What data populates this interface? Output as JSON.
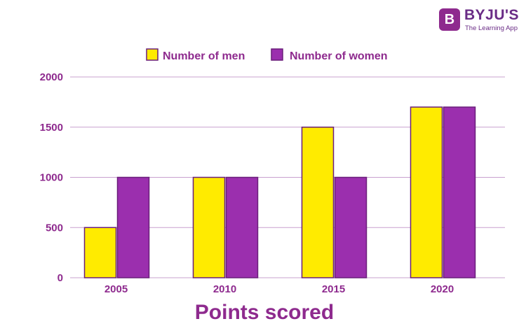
{
  "brand": {
    "badge_letter": "B",
    "name": "BYJU'S",
    "tagline": "The Learning App"
  },
  "chart_data": {
    "type": "bar",
    "categories": [
      "2005",
      "2010",
      "2015",
      "2020"
    ],
    "series": [
      {
        "name": "Number of men",
        "values": [
          500,
          1000,
          1500,
          1700
        ],
        "color": "#ffeb00"
      },
      {
        "name": "Number of women",
        "values": [
          1000,
          1000,
          1000,
          1700
        ],
        "color": "#9b2fae"
      }
    ],
    "yticks": [
      0,
      500,
      1000,
      1500,
      2000
    ],
    "ylim": [
      0,
      2000
    ],
    "xlabel": "Points scored",
    "ylabel": "",
    "grid": true,
    "legend_position": "top-center",
    "colors": {
      "text": "#8e2a8e",
      "grid": "#c9a0cf",
      "bar_border": "#6a1f7a"
    }
  }
}
